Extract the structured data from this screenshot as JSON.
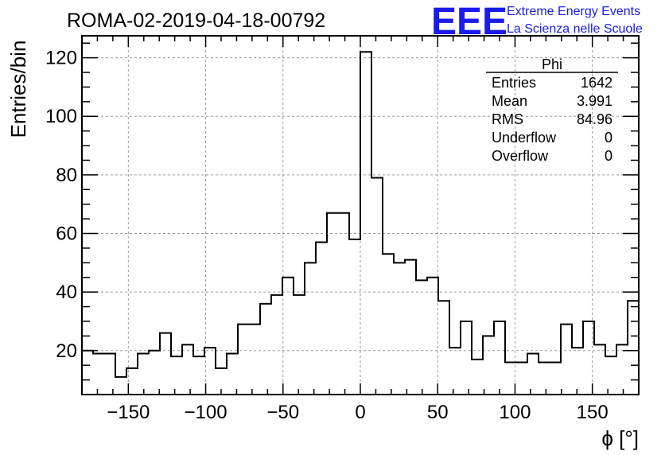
{
  "header": {
    "title": "ROMA-02-2019-04-18-00792",
    "logo": {
      "mark": "EEE",
      "line1": "Extreme Energy Events",
      "line2": "La Scienza nelle Scuole",
      "color": "#1a1aee"
    }
  },
  "stats": {
    "name": "Phi",
    "rows": [
      {
        "label": "Entries",
        "value": "1642"
      },
      {
        "label": "Mean",
        "value": "3.991"
      },
      {
        "label": "RMS",
        "value": "84.96"
      },
      {
        "label": "Underflow",
        "value": "0"
      },
      {
        "label": "Overflow",
        "value": "0"
      }
    ]
  },
  "chart_data": {
    "type": "bar",
    "style": "step-histogram",
    "title": "ROMA-02-2019-04-18-00792",
    "xlabel": "ϕ [°]",
    "ylabel": "Entries/bin",
    "xlim": [
      -180,
      180
    ],
    "ylim": [
      5,
      127.5
    ],
    "grid": true,
    "bin_edges_start": -180,
    "bin_width": 7.2,
    "values": [
      20,
      19,
      19,
      11,
      14,
      19,
      20,
      26,
      18,
      22,
      18,
      21,
      14,
      19,
      29,
      29,
      36,
      39,
      45,
      39,
      50,
      57,
      67,
      67,
      58,
      122,
      79,
      53,
      50,
      51,
      44,
      45,
      37,
      21,
      30,
      17,
      25,
      30,
      16,
      16,
      19,
      16,
      16,
      29,
      21,
      30,
      22,
      18,
      22,
      37
    ],
    "x_ticks": [
      -150,
      -100,
      -50,
      0,
      50,
      100,
      150
    ],
    "x_tick_labels": [
      "−150",
      "−100",
      "−50",
      "0",
      "50",
      "100",
      "150"
    ],
    "y_ticks": [
      20,
      40,
      60,
      80,
      100,
      120
    ],
    "y_tick_labels": [
      "20",
      "40",
      "60",
      "80",
      "100",
      "120"
    ]
  }
}
